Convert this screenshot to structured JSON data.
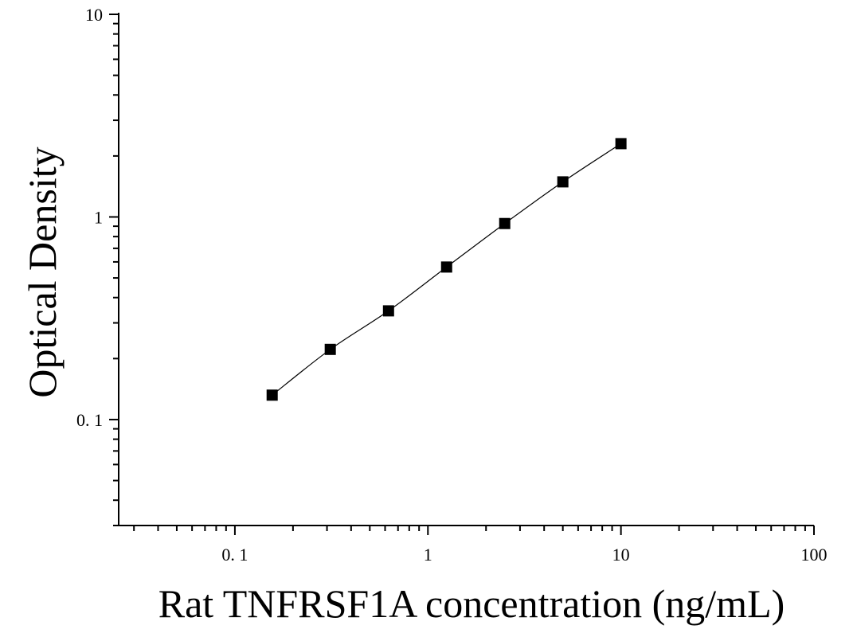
{
  "chart_data": {
    "type": "scatter",
    "xlabel": "Rat TNFRSF1A concentration (ng/mL)",
    "ylabel": "Optical Density",
    "xscale": "log",
    "yscale": "log",
    "xlim": [
      0.025,
      100
    ],
    "ylim": [
      0.03,
      10
    ],
    "x_ticks": [
      {
        "value": 0.1,
        "label": "0. 1"
      },
      {
        "value": 1,
        "label": "1"
      },
      {
        "value": 10,
        "label": "10"
      },
      {
        "value": 100,
        "label": "100"
      }
    ],
    "y_ticks": [
      {
        "value": 0.1,
        "label": "0. 1"
      },
      {
        "value": 1,
        "label": "1"
      },
      {
        "value": 10,
        "label": "10"
      }
    ],
    "grid": false,
    "marker": "square",
    "fit_line": true,
    "series": [
      {
        "x": [
          0.156,
          0.312,
          0.625,
          1.25,
          2.5,
          5,
          10
        ],
        "y": [
          0.132,
          0.222,
          0.344,
          0.566,
          0.928,
          1.49,
          2.3
        ]
      }
    ]
  }
}
